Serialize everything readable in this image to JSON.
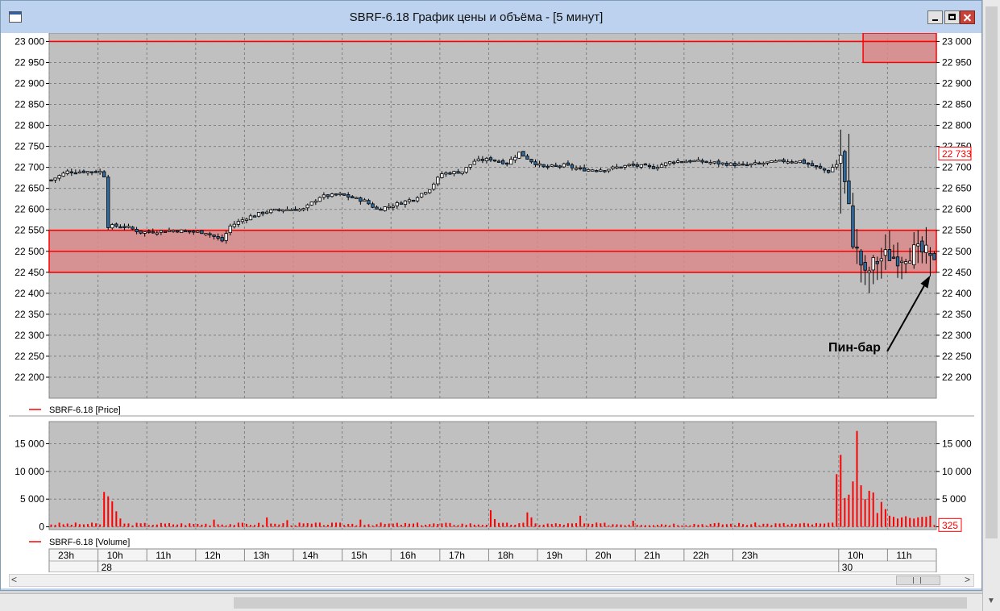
{
  "window": {
    "title": "SBRF-6.18 График цены и объёма - [5 минут]"
  },
  "colors": {
    "frame": "#bdd3ee",
    "plot_bg": "#c0c0c0",
    "grid": "#808080",
    "level_line": "#ff0000",
    "zone_fill": "#d98a8a",
    "candle_up": "#ffffff",
    "candle_down": "#2e6da4",
    "volume_bar": "#ff0000",
    "last_price_label": "#ff0000"
  },
  "chart_data": [
    {
      "type": "candlestick",
      "legend": "SBRF-6.18 [Price]",
      "ylim": [
        22150,
        23020
      ],
      "y_ticks": [
        23000,
        22950,
        22900,
        22850,
        22800,
        22750,
        22700,
        22650,
        22600,
        22550,
        22500,
        22450,
        22400,
        22350,
        22300,
        22250,
        22200
      ],
      "y_tick_labels": [
        "23 000",
        "22 950",
        "22 900",
        "22 850",
        "22 800",
        "22 750",
        "22 700",
        "22 650",
        "22 600",
        "22 550",
        "22 500",
        "22 450",
        "22 400",
        "22 350",
        "22 300",
        "22 250",
        "22 200"
      ],
      "grid": true,
      "last_price_label": "22 733",
      "last_price": 22733,
      "horizontal_levels": [
        23000,
        22550,
        22500,
        22450
      ],
      "zones": [
        {
          "from_value": 22450,
          "to_value": 22550,
          "x_start_index": 0,
          "x_end_index": 217
        },
        {
          "from_value": 22950,
          "to_value": 23020,
          "x_start_index": 200,
          "x_end_index": 217
        }
      ],
      "annotation": {
        "text": "Пин-бар",
        "points_to_index": 216,
        "points_to_value": 22450
      },
      "anchors": [
        {
          "i": 0,
          "p": 22670
        },
        {
          "i": 4,
          "p": 22690
        },
        {
          "i": 12,
          "p": 22690
        },
        {
          "i": 13,
          "p": 22680
        },
        {
          "i": 14,
          "p": 22560
        },
        {
          "i": 18,
          "p": 22560
        },
        {
          "i": 22,
          "p": 22545
        },
        {
          "i": 30,
          "p": 22550
        },
        {
          "i": 38,
          "p": 22545
        },
        {
          "i": 42,
          "p": 22525
        },
        {
          "i": 44,
          "p": 22560
        },
        {
          "i": 48,
          "p": 22580
        },
        {
          "i": 53,
          "p": 22595
        },
        {
          "i": 57,
          "p": 22600
        },
        {
          "i": 62,
          "p": 22600
        },
        {
          "i": 66,
          "p": 22630
        },
        {
          "i": 71,
          "p": 22635
        },
        {
          "i": 77,
          "p": 22620
        },
        {
          "i": 80,
          "p": 22600
        },
        {
          "i": 84,
          "p": 22610
        },
        {
          "i": 89,
          "p": 22625
        },
        {
          "i": 93,
          "p": 22650
        },
        {
          "i": 96,
          "p": 22685
        },
        {
          "i": 101,
          "p": 22690
        },
        {
          "i": 104,
          "p": 22715
        },
        {
          "i": 108,
          "p": 22720
        },
        {
          "i": 112,
          "p": 22710
        },
        {
          "i": 115,
          "p": 22735
        },
        {
          "i": 118,
          "p": 22715
        },
        {
          "i": 121,
          "p": 22700
        },
        {
          "i": 126,
          "p": 22705
        },
        {
          "i": 130,
          "p": 22695
        },
        {
          "i": 136,
          "p": 22695
        },
        {
          "i": 142,
          "p": 22705
        },
        {
          "i": 148,
          "p": 22700
        },
        {
          "i": 153,
          "p": 22715
        },
        {
          "i": 158,
          "p": 22715
        },
        {
          "i": 164,
          "p": 22710
        },
        {
          "i": 170,
          "p": 22705
        },
        {
          "i": 175,
          "p": 22710
        },
        {
          "i": 180,
          "p": 22715
        },
        {
          "i": 184,
          "p": 22715
        },
        {
          "i": 188,
          "p": 22700
        },
        {
          "i": 191,
          "p": 22690
        },
        {
          "i": 193,
          "p": 22710
        },
        {
          "i": 194,
          "p": 22730
        },
        {
          "i": 195,
          "p": 22660
        },
        {
          "i": 196,
          "p": 22600
        },
        {
          "i": 197,
          "p": 22525
        },
        {
          "i": 198,
          "p": 22500
        },
        {
          "i": 200,
          "p": 22440
        },
        {
          "i": 202,
          "p": 22470
        },
        {
          "i": 205,
          "p": 22490
        },
        {
          "i": 208,
          "p": 22485
        },
        {
          "i": 212,
          "p": 22500
        },
        {
          "i": 215,
          "p": 22495
        },
        {
          "i": 217,
          "p": 22490
        }
      ],
      "pin_bar": {
        "index": 216,
        "open": 22495,
        "close": 22490,
        "high": 22510,
        "low": 22440
      }
    },
    {
      "type": "bar",
      "legend": "SBRF-6.18 [Volume]",
      "ylim": [
        -500,
        19000
      ],
      "y_ticks": [
        15000,
        10000,
        5000,
        0
      ],
      "y_tick_labels": [
        "15 000",
        "10 000",
        "5 000",
        "0"
      ],
      "grid": true,
      "last_value_label": "325",
      "last_value": 325,
      "baseline_volume": 600,
      "spikes": [
        {
          "index": 13,
          "value": 6300
        },
        {
          "index": 14,
          "value": 5500
        },
        {
          "index": 15,
          "value": 4600
        },
        {
          "index": 16,
          "value": 2800
        },
        {
          "index": 17,
          "value": 1500
        },
        {
          "index": 40,
          "value": 1300
        },
        {
          "index": 53,
          "value": 1700
        },
        {
          "index": 58,
          "value": 1200
        },
        {
          "index": 76,
          "value": 1300
        },
        {
          "index": 108,
          "value": 3000
        },
        {
          "index": 109,
          "value": 1400
        },
        {
          "index": 117,
          "value": 2600
        },
        {
          "index": 118,
          "value": 1700
        },
        {
          "index": 130,
          "value": 2000
        },
        {
          "index": 143,
          "value": 1100
        },
        {
          "index": 193,
          "value": 9500
        },
        {
          "index": 194,
          "value": 13000
        },
        {
          "index": 195,
          "value": 5200
        },
        {
          "index": 196,
          "value": 5800
        },
        {
          "index": 197,
          "value": 8200
        },
        {
          "index": 198,
          "value": 17300
        },
        {
          "index": 199,
          "value": 7500
        },
        {
          "index": 200,
          "value": 5000
        },
        {
          "index": 201,
          "value": 6500
        },
        {
          "index": 202,
          "value": 6200
        },
        {
          "index": 203,
          "value": 2500
        },
        {
          "index": 204,
          "value": 4500
        },
        {
          "index": 205,
          "value": 3200
        },
        {
          "index": 206,
          "value": 2000
        },
        {
          "index": 207,
          "value": 1800
        },
        {
          "index": 208,
          "value": 1500
        },
        {
          "index": 209,
          "value": 1700
        },
        {
          "index": 210,
          "value": 1900
        },
        {
          "index": 211,
          "value": 1600
        },
        {
          "index": 212,
          "value": 1500
        },
        {
          "index": 213,
          "value": 1700
        },
        {
          "index": 214,
          "value": 1800
        },
        {
          "index": 215,
          "value": 1800
        },
        {
          "index": 216,
          "value": 2000
        },
        {
          "index": 217,
          "value": 325
        }
      ]
    }
  ],
  "time_axis": {
    "hour_labels": [
      {
        "label": "23h",
        "index": 0
      },
      {
        "label": "10h",
        "index": 12
      },
      {
        "label": "11h",
        "index": 24
      },
      {
        "label": "12h",
        "index": 36
      },
      {
        "label": "13h",
        "index": 48
      },
      {
        "label": "14h",
        "index": 60
      },
      {
        "label": "15h",
        "index": 72
      },
      {
        "label": "16h",
        "index": 84
      },
      {
        "label": "17h",
        "index": 96
      },
      {
        "label": "18h",
        "index": 108
      },
      {
        "label": "19h",
        "index": 120
      },
      {
        "label": "20h",
        "index": 132
      },
      {
        "label": "21h",
        "index": 144
      },
      {
        "label": "22h",
        "index": 156
      },
      {
        "label": "23h",
        "index": 168
      },
      {
        "label": "10h",
        "index": 194
      },
      {
        "label": "11h",
        "index": 206
      }
    ],
    "date_labels": [
      {
        "label": "28",
        "index": 12
      },
      {
        "label": "30",
        "index": 194
      }
    ]
  },
  "scrollbar": {
    "left_arrow": "<",
    "right_arrow": ">",
    "thumb_glyph": "|||"
  },
  "icons": [
    "window-app-icon",
    "minimize-icon",
    "maximize-icon",
    "close-icon",
    "chevron-left-icon",
    "chevron-right-icon",
    "arrow-icon"
  ]
}
